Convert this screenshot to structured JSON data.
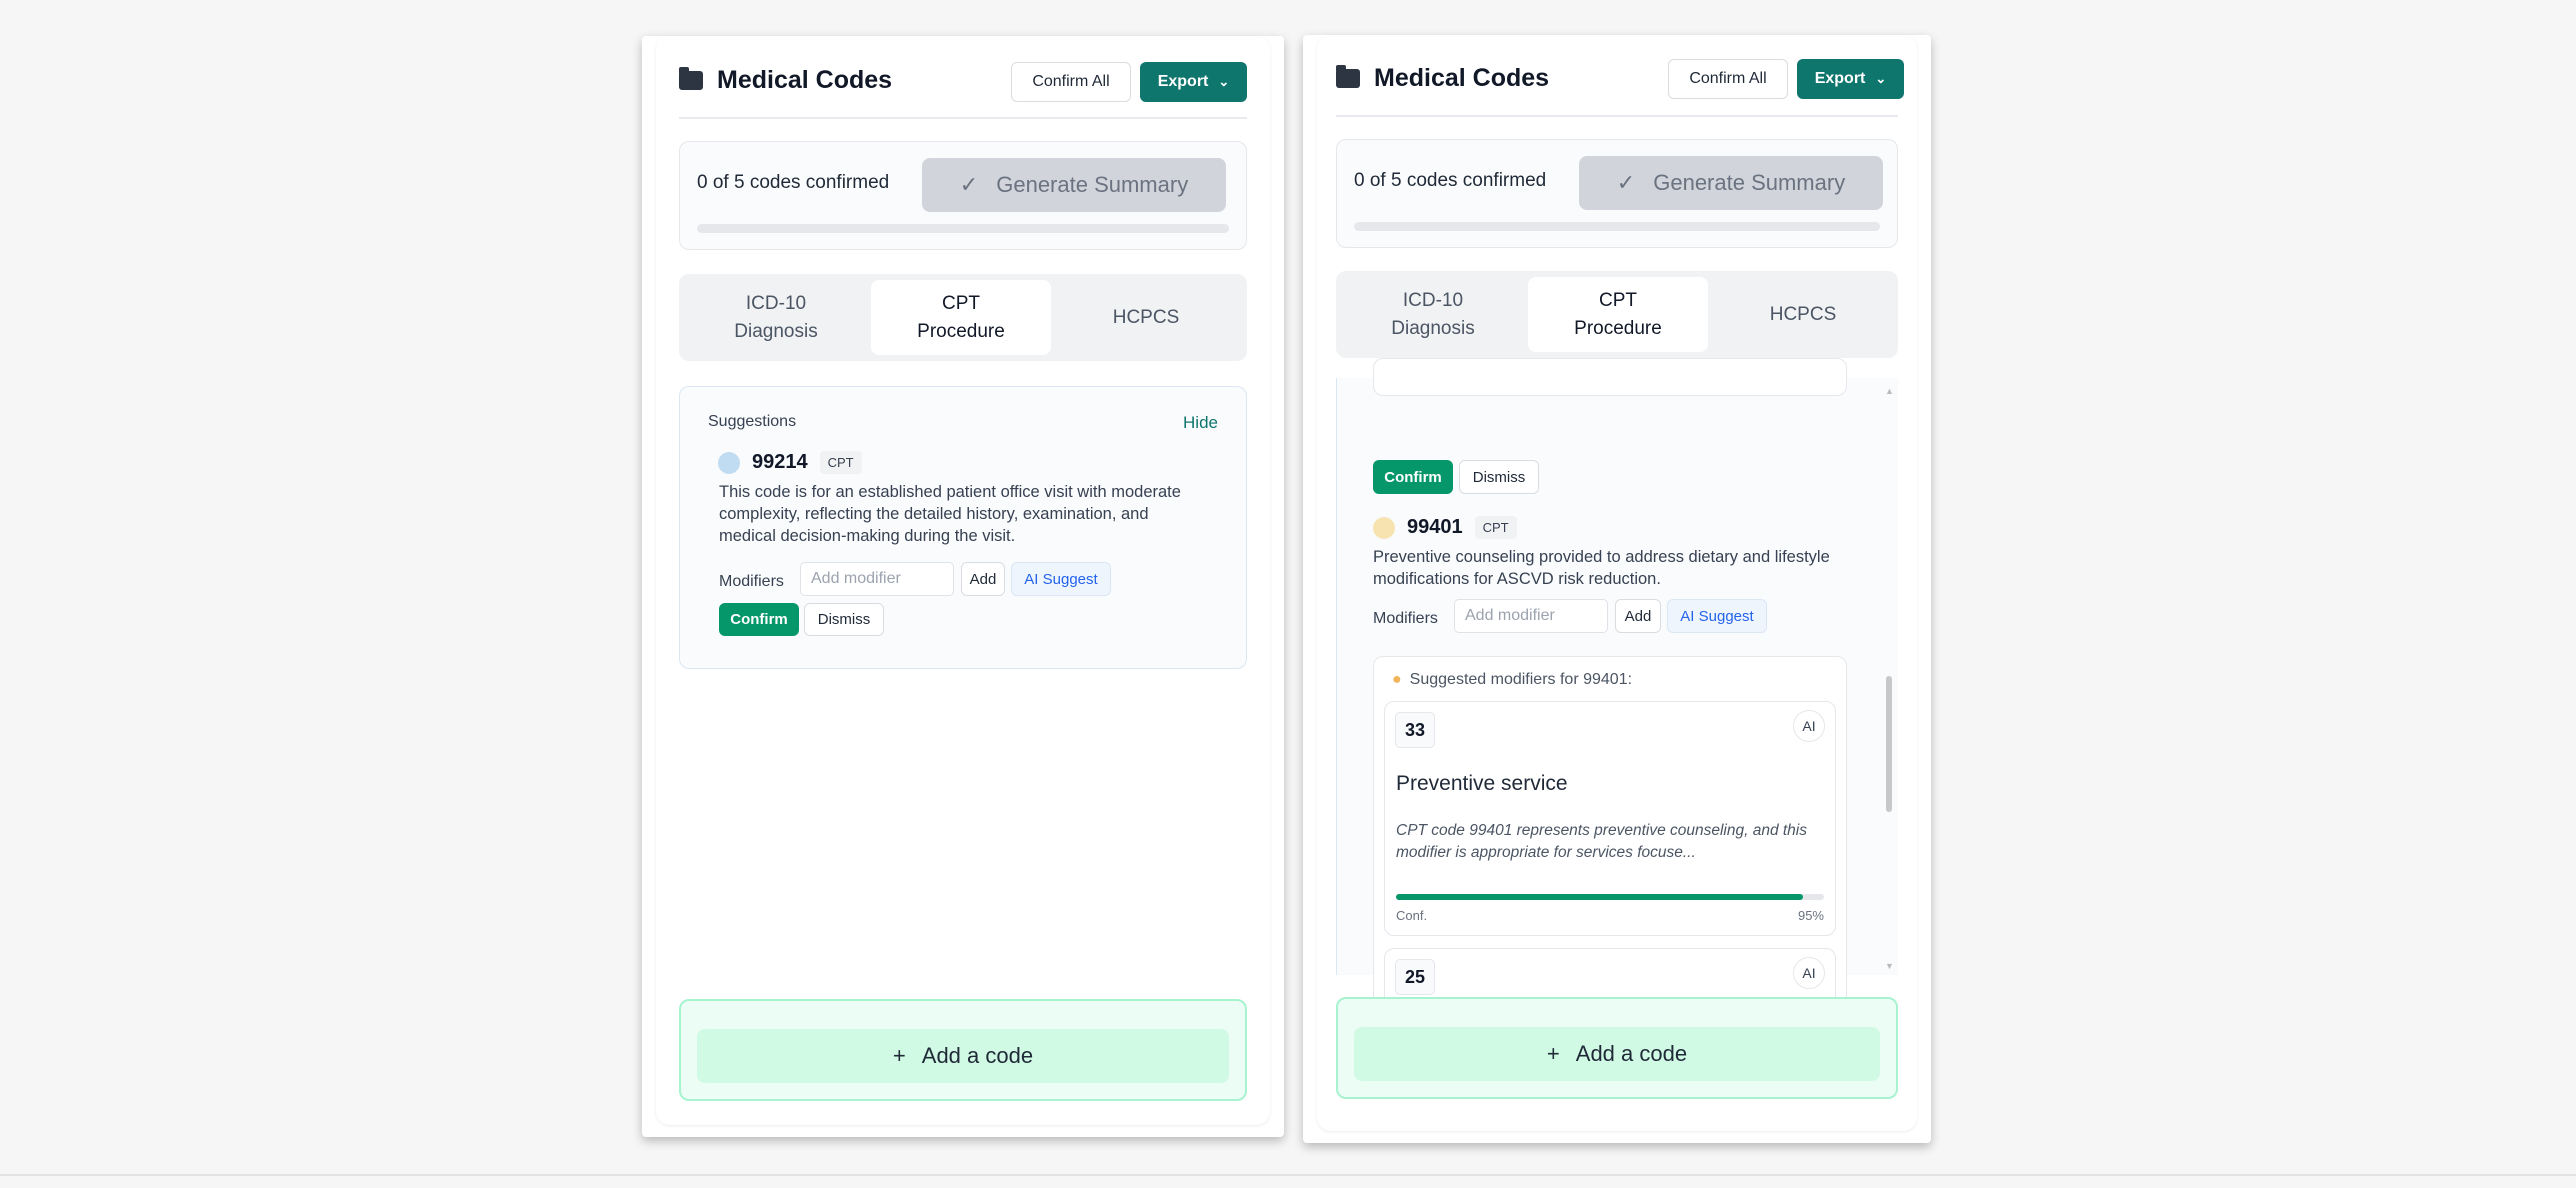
{
  "panels": [
    {
      "title": "Medical Codes",
      "confirm_all": "Confirm All",
      "export": "Export",
      "progress_text": "0 of 5 codes confirmed",
      "generate_summary": "Generate Summary",
      "progress_fraction": 0,
      "tabs": [
        {
          "line1": "ICD-10",
          "line2": "Diagnosis"
        },
        {
          "line1": "CPT",
          "line2": "Procedure"
        },
        {
          "line1": "HCPCS",
          "line2": ""
        }
      ],
      "active_tab": "CPT Procedure",
      "suggestions": {
        "label": "Suggestions",
        "hide": "Hide",
        "item": {
          "code": "99214",
          "type": "CPT",
          "dot_color": "#bfdcf3",
          "description": "This code is for an established patient office visit with moderate complexity, reflecting the detailed history, examination, and medical decision-making during the visit.",
          "modifiers_label": "Modifiers",
          "modifier_placeholder": "Add modifier",
          "add": "Add",
          "ai_suggest": "AI Suggest",
          "confirm": "Confirm",
          "dismiss": "Dismiss"
        }
      },
      "add_code": "Add a code"
    },
    {
      "title": "Medical Codes",
      "confirm_all": "Confirm All",
      "export": "Export",
      "progress_text": "0 of 5 codes confirmed",
      "generate_summary": "Generate Summary",
      "progress_fraction": 0,
      "tabs": [
        {
          "line1": "ICD-10",
          "line2": "Diagnosis"
        },
        {
          "line1": "CPT",
          "line2": "Procedure"
        },
        {
          "line1": "HCPCS",
          "line2": ""
        }
      ],
      "active_tab": "CPT Procedure",
      "prev_item": {
        "confirm": "Confirm",
        "dismiss": "Dismiss"
      },
      "item": {
        "code": "99401",
        "type": "CPT",
        "dot_color": "#f7e3b0",
        "description": "Preventive counseling provided to address dietary and lifestyle modifications for ASCVD risk reduction.",
        "modifiers_label": "Modifiers",
        "modifier_placeholder": "Add modifier",
        "add": "Add",
        "ai_suggest": "AI Suggest"
      },
      "suggested_modifiers": {
        "heading": "Suggested modifiers for 99401:",
        "cards": [
          {
            "code": "33",
            "badge": "AI",
            "title": "Preventive service",
            "reason": "CPT code 99401 represents preventive counseling, and this modifier is appropriate for services focuse...",
            "conf_label": "Conf.",
            "confidence": "95%",
            "confidence_value": 95
          },
          {
            "code": "25",
            "badge": "AI"
          }
        ]
      },
      "add_code": "Add a code"
    }
  ],
  "colors": {
    "primary": "#0f766e",
    "confirm": "#059669",
    "ai_link": "#2563eb"
  }
}
